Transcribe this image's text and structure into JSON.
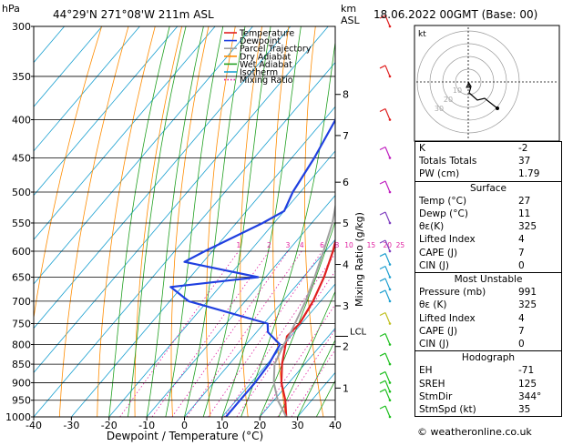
{
  "header": {
    "location": "44°29'N  271°08'W  211m  ASL",
    "datetime": "18.06.2022  00GMT  (Base: 00)",
    "left_unit": "hPa",
    "right_unit_top": "km",
    "right_unit_bottom": "ASL"
  },
  "chart_data": {
    "type": "line",
    "title": "44°29'N  271°08'W  211m  ASL",
    "xlabel": "Dewpoint / Temperature (°C)",
    "ylabel": "hPa",
    "secondary_ylabel": "Mixing Ratio (g/kg)",
    "xlim": [
      -40,
      40
    ],
    "ylim": [
      1000,
      300
    ],
    "y_scale": "log",
    "x_ticks": [
      -40,
      -30,
      -20,
      -10,
      0,
      10,
      20,
      30,
      40
    ],
    "pressure_levels": [
      300,
      350,
      400,
      450,
      500,
      550,
      600,
      650,
      700,
      750,
      800,
      850,
      900,
      950,
      1000
    ],
    "km_ticks": [
      {
        "km": "8",
        "p": 370
      },
      {
        "km": "7",
        "p": 420
      },
      {
        "km": "6",
        "p": 485
      },
      {
        "km": "5",
        "p": 550
      },
      {
        "km": "4",
        "p": 625
      },
      {
        "km": "3",
        "p": 710
      },
      {
        "km": "2",
        "p": 805
      },
      {
        "km": "1",
        "p": 915
      }
    ],
    "lcl": {
      "label": "LCL",
      "p": 780
    },
    "mixing_ratio_labels": [
      "1",
      "2",
      "3",
      "4",
      "6",
      "8",
      "10",
      "15",
      "20",
      "25"
    ],
    "legend": [
      {
        "name": "Temperature",
        "color": "#e02020",
        "style": "solid"
      },
      {
        "name": "Dewpoint",
        "color": "#2040e0",
        "style": "solid"
      },
      {
        "name": "Parcel Trajectory",
        "color": "#a0a0a0",
        "style": "solid"
      },
      {
        "name": "Dry Adiabat",
        "color": "#ff8c00",
        "style": "solid"
      },
      {
        "name": "Wet Adiabat",
        "color": "#20a020",
        "style": "solid"
      },
      {
        "name": "Isotherm",
        "color": "#1aa0d0",
        "style": "solid"
      },
      {
        "name": "Mixing Ratio",
        "color": "#e020a0",
        "style": "dotted"
      }
    ],
    "series": [
      {
        "name": "Temperature",
        "color": "#e02020",
        "points": [
          [
            1000,
            27
          ],
          [
            950,
            23
          ],
          [
            900,
            18
          ],
          [
            850,
            14
          ],
          [
            800,
            10.5
          ],
          [
            780,
            9
          ],
          [
            750,
            9.5
          ],
          [
            700,
            8
          ],
          [
            650,
            5.5
          ],
          [
            600,
            2
          ],
          [
            550,
            -2.5
          ],
          [
            500,
            -8
          ],
          [
            450,
            -14
          ],
          [
            400,
            -21
          ],
          [
            350,
            -29
          ],
          [
            300,
            -38
          ]
        ]
      },
      {
        "name": "Dewpoint",
        "color": "#2040e0",
        "points": [
          [
            1000,
            11
          ],
          [
            950,
            11
          ],
          [
            900,
            11
          ],
          [
            850,
            10.5
          ],
          [
            800,
            9
          ],
          [
            770,
            3
          ],
          [
            750,
            1
          ],
          [
            700,
            -25
          ],
          [
            670,
            -33
          ],
          [
            650,
            -12
          ],
          [
            620,
            -35
          ],
          [
            600,
            -32
          ],
          [
            550,
            -23
          ],
          [
            530,
            -20
          ],
          [
            500,
            -22
          ],
          [
            450,
            -24
          ],
          [
            400,
            -27
          ],
          [
            350,
            -35
          ],
          [
            320,
            -35
          ],
          [
            300,
            -35
          ]
        ]
      },
      {
        "name": "Parcel Trajectory",
        "color": "#a0a0a0",
        "points": [
          [
            1000,
            27
          ],
          [
            950,
            21
          ],
          [
            900,
            16
          ],
          [
            850,
            12
          ],
          [
            800,
            10
          ],
          [
            780,
            9.5
          ],
          [
            700,
            6
          ],
          [
            650,
            3
          ],
          [
            600,
            -0.5
          ],
          [
            550,
            -4.5
          ],
          [
            500,
            -10
          ],
          [
            450,
            -16
          ],
          [
            400,
            -23
          ],
          [
            350,
            -31
          ],
          [
            300,
            -41
          ]
        ]
      }
    ]
  },
  "hodograph": {
    "label": "kt",
    "rings": [
      "10",
      "20",
      "30"
    ]
  },
  "indices": {
    "rows": [
      {
        "label": "K",
        "value": "-2"
      },
      {
        "label": "Totals Totals",
        "value": "37"
      },
      {
        "label": "PW (cm)",
        "value": "1.79"
      }
    ],
    "surface": {
      "title": "Surface",
      "rows": [
        {
          "label": "Temp (°C)",
          "value": "27"
        },
        {
          "label": "Dewp (°C)",
          "value": "11"
        },
        {
          "label": "θε(K)",
          "value": "325"
        },
        {
          "label": "Lifted Index",
          "value": "4"
        },
        {
          "label": "CAPE (J)",
          "value": "7"
        },
        {
          "label": "CIN (J)",
          "value": "0"
        }
      ]
    },
    "most_unstable": {
      "title": "Most Unstable",
      "rows": [
        {
          "label": "Pressure (mb)",
          "value": "991"
        },
        {
          "label": "θε (K)",
          "value": "325"
        },
        {
          "label": "Lifted Index",
          "value": "4"
        },
        {
          "label": "CAPE (J)",
          "value": "7"
        },
        {
          "label": "CIN (J)",
          "value": "0"
        }
      ]
    },
    "hodograph_box": {
      "title": "Hodograph",
      "rows": [
        {
          "label": "EH",
          "value": "-71"
        },
        {
          "label": "SREH",
          "value": "125"
        },
        {
          "label": "StmDir",
          "value": "344°"
        },
        {
          "label": "StmSpd (kt)",
          "value": "35"
        }
      ]
    }
  },
  "footer": {
    "credit": "© weatheronline.co.uk"
  }
}
